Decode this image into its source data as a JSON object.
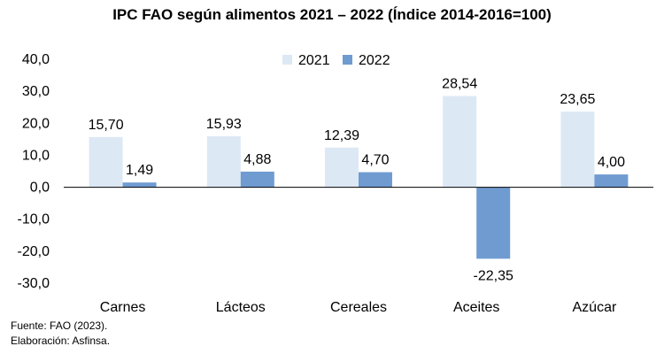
{
  "chart_data": {
    "type": "bar",
    "title": "IPC FAO según alimentos 2021 – 2022 (Índice 2014-2016=100)",
    "categories": [
      "Carnes",
      "Lácteos",
      "Cereales",
      "Aceites",
      "Azúcar"
    ],
    "series": [
      {
        "name": "2021",
        "values": [
          15.7,
          15.93,
          12.39,
          28.54,
          23.65
        ],
        "labels": [
          "15,70",
          "15,93",
          "12,39",
          "28,54",
          "23,65"
        ],
        "color": "#dde8f5"
      },
      {
        "name": "2022",
        "values": [
          1.49,
          4.88,
          4.7,
          -22.35,
          4.0
        ],
        "labels": [
          "1,49",
          "4,88",
          "4,70",
          "-22,35",
          "4,00"
        ],
        "color": "#6f9bd1"
      }
    ],
    "ylim": [
      -30,
      40
    ],
    "yticks": [
      40,
      30,
      20,
      10,
      0,
      -10,
      -20,
      -30
    ],
    "ytick_labels": [
      "40,0",
      "30,0",
      "20,0",
      "10,0",
      "0,0",
      "-10,0",
      "-20,0",
      "-30,0"
    ],
    "xlabel": "",
    "ylabel": "",
    "legend": "top-center",
    "grid": false
  },
  "notes": {
    "source": "Fuente: FAO (2023).",
    "elaboration": "Elaboración: Asfinsa."
  }
}
